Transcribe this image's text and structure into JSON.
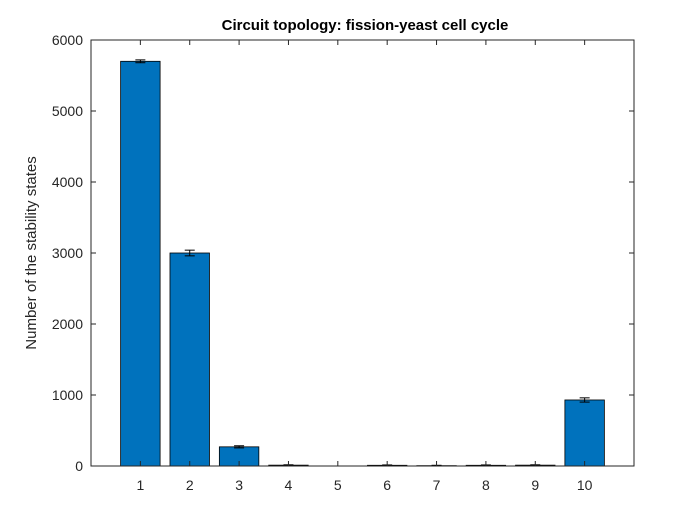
{
  "chart_data": {
    "type": "bar",
    "title": "Circuit topology: fission-yeast cell cycle",
    "xlabel": "",
    "ylabel": "Number of the stability states",
    "categories": [
      "1",
      "2",
      "3",
      "4",
      "5",
      "6",
      "7",
      "8",
      "9",
      "10"
    ],
    "values": [
      5700,
      3000,
      270,
      12,
      0,
      10,
      5,
      10,
      12,
      930
    ],
    "errors": [
      20,
      40,
      15,
      5,
      0,
      5,
      5,
      5,
      5,
      30
    ],
    "ylim": [
      0,
      6000
    ],
    "yticks": [
      "0",
      "1000",
      "2000",
      "3000",
      "4000",
      "5000",
      "6000"
    ],
    "grid": false,
    "legend": "none",
    "bar_color": "#0072BD",
    "edge_color": "#000000",
    "axis_color": "#262626"
  }
}
